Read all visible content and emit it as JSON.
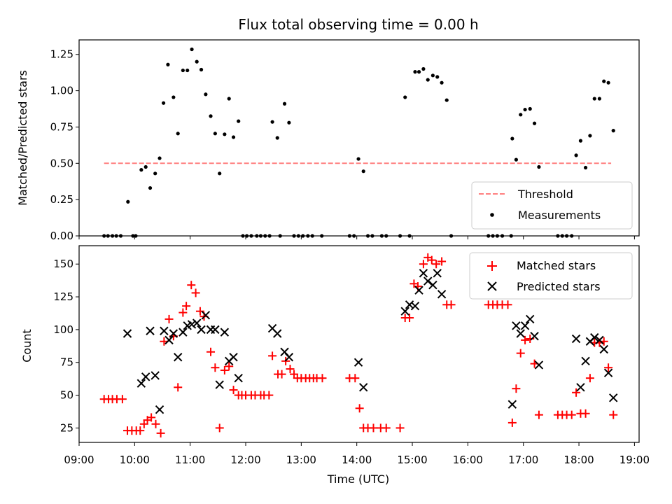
{
  "colors": {
    "matched": "#ff0000",
    "predicted": "#000000",
    "threshold": "#ff7f7f",
    "measurement": "#000000"
  },
  "chart_data": [
    {
      "type": "scatter",
      "title": "Flux total observing time = 0.00 h",
      "xlabel": "",
      "ylabel": "Matched/Predicted stars",
      "xlim": [
        9.0,
        19.0833
      ],
      "ylim": [
        0.0,
        1.35
      ],
      "yticks": [
        "0.00",
        "0.25",
        "0.50",
        "0.75",
        "1.00",
        "1.25"
      ],
      "legend_position": "lower right",
      "threshold": {
        "name": "Threshold",
        "y": 0.5,
        "x": [
          9.45,
          18.58
        ]
      },
      "series": [
        {
          "name": "Measurements",
          "marker": "dot",
          "points": [
            [
              9.45,
              0
            ],
            [
              9.52,
              0
            ],
            [
              9.6,
              0
            ],
            [
              9.67,
              0
            ],
            [
              9.75,
              0
            ],
            [
              9.88,
              0.235
            ],
            [
              9.97,
              0
            ],
            [
              10.02,
              0
            ],
            [
              10.12,
              0.455
            ],
            [
              10.2,
              0.475
            ],
            [
              10.28,
              0.33
            ],
            [
              10.37,
              0.43
            ],
            [
              10.45,
              0.535
            ],
            [
              10.52,
              0.915
            ],
            [
              10.6,
              1.18
            ],
            [
              10.7,
              0.955
            ],
            [
              10.78,
              0.705
            ],
            [
              10.87,
              1.14
            ],
            [
              10.95,
              1.14
            ],
            [
              11.03,
              1.285
            ],
            [
              11.12,
              1.2
            ],
            [
              11.2,
              1.145
            ],
            [
              11.28,
              0.975
            ],
            [
              11.37,
              0.825
            ],
            [
              11.45,
              0.705
            ],
            [
              11.53,
              0.43
            ],
            [
              11.62,
              0.7
            ],
            [
              11.7,
              0.945
            ],
            [
              11.78,
              0.68
            ],
            [
              11.87,
              0.79
            ],
            [
              11.95,
              0
            ],
            [
              12.02,
              0
            ],
            [
              12.1,
              0
            ],
            [
              12.2,
              0
            ],
            [
              12.27,
              0
            ],
            [
              12.35,
              0
            ],
            [
              12.43,
              0
            ],
            [
              12.48,
              0.785
            ],
            [
              12.57,
              0.675
            ],
            [
              12.62,
              0
            ],
            [
              12.7,
              0.91
            ],
            [
              12.78,
              0.78
            ],
            [
              12.87,
              0
            ],
            [
              12.95,
              0
            ],
            [
              13.03,
              0
            ],
            [
              13.12,
              0
            ],
            [
              13.2,
              0
            ],
            [
              13.37,
              0
            ],
            [
              13.87,
              0
            ],
            [
              13.95,
              0
            ],
            [
              14.03,
              0.53
            ],
            [
              14.12,
              0.445
            ],
            [
              14.2,
              0
            ],
            [
              14.28,
              0
            ],
            [
              14.45,
              0
            ],
            [
              14.53,
              0
            ],
            [
              14.78,
              0
            ],
            [
              14.87,
              0.955
            ],
            [
              14.95,
              0
            ],
            [
              15.05,
              1.13
            ],
            [
              15.12,
              1.13
            ],
            [
              15.2,
              1.15
            ],
            [
              15.28,
              1.075
            ],
            [
              15.37,
              1.105
            ],
            [
              15.45,
              1.095
            ],
            [
              15.53,
              1.055
            ],
            [
              15.62,
              0.935
            ],
            [
              15.7,
              0
            ],
            [
              16.37,
              0
            ],
            [
              16.45,
              0
            ],
            [
              16.53,
              0
            ],
            [
              16.62,
              0
            ],
            [
              16.78,
              0
            ],
            [
              16.8,
              0.67
            ],
            [
              16.87,
              0.525
            ],
            [
              16.95,
              0.835
            ],
            [
              17.03,
              0.87
            ],
            [
              17.12,
              0.875
            ],
            [
              17.2,
              0.775
            ],
            [
              17.28,
              0.475
            ],
            [
              17.62,
              0
            ],
            [
              17.7,
              0
            ],
            [
              17.78,
              0
            ],
            [
              17.87,
              0
            ],
            [
              17.95,
              0.555
            ],
            [
              18.03,
              0.655
            ],
            [
              18.12,
              0.47
            ],
            [
              18.2,
              0.69
            ],
            [
              18.28,
              0.945
            ],
            [
              18.37,
              0.945
            ],
            [
              18.45,
              1.065
            ],
            [
              18.53,
              1.055
            ],
            [
              18.62,
              0.725
            ]
          ]
        }
      ]
    },
    {
      "type": "scatter",
      "title": "",
      "xlabel": "Time (UTC)",
      "ylabel": "Count",
      "xlim": [
        9.0,
        19.0833
      ],
      "ylim": [
        14,
        164
      ],
      "yticks": [
        "25",
        "50",
        "75",
        "100",
        "125",
        "150"
      ],
      "xticks": [
        "09:00",
        "10:00",
        "11:00",
        "12:00",
        "13:00",
        "14:00",
        "15:00",
        "16:00",
        "17:00",
        "18:00",
        "19:00"
      ],
      "legend_position": "upper right",
      "series": [
        {
          "name": "Matched stars",
          "marker": "plus",
          "points": [
            [
              9.45,
              47
            ],
            [
              9.53,
              47
            ],
            [
              9.6,
              47
            ],
            [
              9.68,
              47
            ],
            [
              9.78,
              47
            ],
            [
              9.87,
              23
            ],
            [
              9.95,
              23
            ],
            [
              10.03,
              23
            ],
            [
              10.1,
              23
            ],
            [
              10.17,
              28
            ],
            [
              10.23,
              31
            ],
            [
              10.3,
              33
            ],
            [
              10.38,
              28
            ],
            [
              10.47,
              21
            ],
            [
              10.53,
              91
            ],
            [
              10.62,
              108
            ],
            [
              10.7,
              95
            ],
            [
              10.78,
              56
            ],
            [
              10.87,
              113
            ],
            [
              10.93,
              118
            ],
            [
              11.02,
              134
            ],
            [
              11.1,
              128
            ],
            [
              11.18,
              114
            ],
            [
              11.25,
              110
            ],
            [
              11.37,
              83
            ],
            [
              11.45,
              71
            ],
            [
              11.53,
              25
            ],
            [
              11.62,
              69
            ],
            [
              11.7,
              72
            ],
            [
              11.78,
              54
            ],
            [
              11.87,
              50
            ],
            [
              11.93,
              50
            ],
            [
              12.0,
              50
            ],
            [
              12.1,
              50
            ],
            [
              12.17,
              50
            ],
            [
              12.27,
              50
            ],
            [
              12.33,
              50
            ],
            [
              12.42,
              50
            ],
            [
              12.48,
              80
            ],
            [
              12.58,
              66
            ],
            [
              12.65,
              66
            ],
            [
              12.72,
              76
            ],
            [
              12.8,
              70
            ],
            [
              12.87,
              66
            ],
            [
              12.93,
              63
            ],
            [
              13.0,
              63
            ],
            [
              13.08,
              63
            ],
            [
              13.15,
              63
            ],
            [
              13.22,
              63
            ],
            [
              13.28,
              63
            ],
            [
              13.38,
              63
            ],
            [
              13.87,
              63
            ],
            [
              13.97,
              63
            ],
            [
              14.05,
              40
            ],
            [
              14.12,
              25
            ],
            [
              14.2,
              25
            ],
            [
              14.3,
              25
            ],
            [
              14.43,
              25
            ],
            [
              14.53,
              25
            ],
            [
              14.78,
              25
            ],
            [
              14.87,
              109
            ],
            [
              14.95,
              109
            ],
            [
              15.03,
              135
            ],
            [
              15.1,
              133
            ],
            [
              15.2,
              150
            ],
            [
              15.28,
              155
            ],
            [
              15.35,
              153
            ],
            [
              15.43,
              150
            ],
            [
              15.53,
              152
            ],
            [
              15.62,
              119
            ],
            [
              15.7,
              119
            ],
            [
              16.37,
              119
            ],
            [
              16.45,
              119
            ],
            [
              16.53,
              119
            ],
            [
              16.62,
              119
            ],
            [
              16.72,
              119
            ],
            [
              16.8,
              29
            ],
            [
              16.87,
              55
            ],
            [
              16.95,
              82
            ],
            [
              17.03,
              92
            ],
            [
              17.12,
              93
            ],
            [
              17.2,
              74
            ],
            [
              17.28,
              35
            ],
            [
              17.62,
              35
            ],
            [
              17.7,
              35
            ],
            [
              17.78,
              35
            ],
            [
              17.87,
              35
            ],
            [
              17.95,
              52
            ],
            [
              18.03,
              36
            ],
            [
              18.12,
              36
            ],
            [
              18.2,
              63
            ],
            [
              18.28,
              90
            ],
            [
              18.37,
              90
            ],
            [
              18.45,
              91
            ],
            [
              18.53,
              71
            ],
            [
              18.62,
              35
            ]
          ]
        },
        {
          "name": "Predicted stars",
          "marker": "x",
          "points": [
            [
              9.87,
              97
            ],
            [
              10.12,
              59
            ],
            [
              10.2,
              64
            ],
            [
              10.28,
              99
            ],
            [
              10.37,
              65
            ],
            [
              10.45,
              39
            ],
            [
              10.53,
              99
            ],
            [
              10.62,
              92
            ],
            [
              10.7,
              97
            ],
            [
              10.78,
              79
            ],
            [
              10.87,
              98
            ],
            [
              10.95,
              103
            ],
            [
              11.03,
              104
            ],
            [
              11.12,
              105
            ],
            [
              11.2,
              100
            ],
            [
              11.28,
              111
            ],
            [
              11.37,
              100
            ],
            [
              11.45,
              100
            ],
            [
              11.53,
              58
            ],
            [
              11.62,
              98
            ],
            [
              11.7,
              76
            ],
            [
              11.78,
              79
            ],
            [
              11.87,
              63
            ],
            [
              12.48,
              101
            ],
            [
              12.57,
              97
            ],
            [
              12.7,
              83
            ],
            [
              12.78,
              79
            ],
            [
              14.03,
              75
            ],
            [
              14.12,
              56
            ],
            [
              14.87,
              114
            ],
            [
              14.95,
              119
            ],
            [
              15.05,
              118
            ],
            [
              15.12,
              130
            ],
            [
              15.2,
              143
            ],
            [
              15.28,
              137
            ],
            [
              15.37,
              134
            ],
            [
              15.45,
              143
            ],
            [
              15.53,
              127
            ],
            [
              16.8,
              43
            ],
            [
              16.87,
              103
            ],
            [
              16.95,
              97
            ],
            [
              17.03,
              103
            ],
            [
              17.12,
              108
            ],
            [
              17.2,
              95
            ],
            [
              17.28,
              73
            ],
            [
              17.95,
              93
            ],
            [
              18.03,
              56
            ],
            [
              18.12,
              76
            ],
            [
              18.2,
              91
            ],
            [
              18.28,
              94
            ],
            [
              18.37,
              92
            ],
            [
              18.45,
              85
            ],
            [
              18.53,
              67
            ],
            [
              18.62,
              48
            ]
          ]
        }
      ]
    }
  ]
}
